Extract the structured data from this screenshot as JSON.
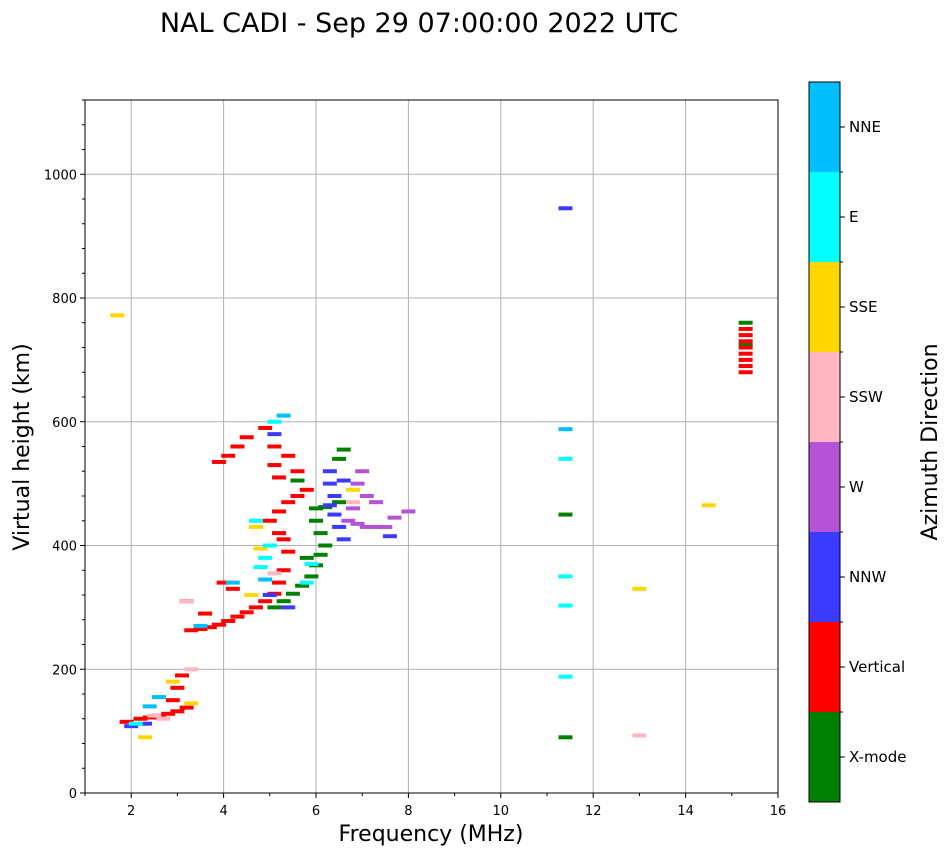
{
  "chart_data": {
    "type": "scatter",
    "title": "NAL CADI - Sep 29 07:00:00 2022 UTC",
    "xlabel": "Frequency (MHz)",
    "ylabel": "Virtual height (km)",
    "xlim": [
      1,
      16
    ],
    "ylim": [
      0,
      1120
    ],
    "xticks": [
      2,
      4,
      6,
      8,
      10,
      12,
      14,
      16
    ],
    "yticks": [
      0,
      200,
      400,
      600,
      800,
      1000
    ],
    "grid": true,
    "colorbar": {
      "title": "Azimuth Direction",
      "categories": [
        {
          "name": "X-mode",
          "color": "#008000"
        },
        {
          "name": "Vertical",
          "color": "#ff0000"
        },
        {
          "name": "NNW",
          "color": "#3b3bff"
        },
        {
          "name": "W",
          "color": "#b553d6"
        },
        {
          "name": "SSW",
          "color": "#ffb6c1"
        },
        {
          "name": "SSE",
          "color": "#ffd700"
        },
        {
          "name": "E",
          "color": "#00ffff"
        },
        {
          "name": "NNE",
          "color": "#00bfff"
        }
      ]
    },
    "series": [
      {
        "name": "X-mode",
        "points": [
          [
            11.4,
            90
          ],
          [
            11.4,
            450
          ],
          [
            5.1,
            300
          ],
          [
            5.3,
            310
          ],
          [
            5.5,
            322
          ],
          [
            5.7,
            335
          ],
          [
            5.9,
            350
          ],
          [
            6.0,
            368
          ],
          [
            6.1,
            385
          ],
          [
            6.2,
            400
          ],
          [
            6.1,
            420
          ],
          [
            6.0,
            440
          ],
          [
            6.0,
            460
          ],
          [
            6.2,
            462
          ],
          [
            6.5,
            470
          ],
          [
            6.5,
            540
          ],
          [
            6.6,
            555
          ],
          [
            5.6,
            505
          ],
          [
            5.8,
            380
          ],
          [
            15.3,
            725
          ],
          [
            15.3,
            760
          ]
        ]
      },
      {
        "name": "Vertical",
        "points": [
          [
            1.9,
            115
          ],
          [
            2.2,
            120
          ],
          [
            2.4,
            122
          ],
          [
            2.6,
            125
          ],
          [
            2.8,
            128
          ],
          [
            3.0,
            132
          ],
          [
            3.2,
            138
          ],
          [
            2.9,
            150
          ],
          [
            3.0,
            170
          ],
          [
            3.1,
            190
          ],
          [
            3.3,
            263
          ],
          [
            3.5,
            265
          ],
          [
            3.7,
            268
          ],
          [
            3.9,
            272
          ],
          [
            4.1,
            278
          ],
          [
            4.3,
            285
          ],
          [
            4.5,
            292
          ],
          [
            4.7,
            300
          ],
          [
            4.9,
            310
          ],
          [
            5.1,
            322
          ],
          [
            5.2,
            340
          ],
          [
            5.3,
            360
          ],
          [
            5.4,
            390
          ],
          [
            5.3,
            410
          ],
          [
            5.2,
            420
          ],
          [
            5.0,
            440
          ],
          [
            5.2,
            455
          ],
          [
            5.4,
            470
          ],
          [
            5.6,
            480
          ],
          [
            5.8,
            490
          ],
          [
            5.6,
            520
          ],
          [
            5.2,
            510
          ],
          [
            5.1,
            530
          ],
          [
            5.4,
            545
          ],
          [
            5.1,
            560
          ],
          [
            4.9,
            590
          ],
          [
            4.5,
            575
          ],
          [
            4.3,
            560
          ],
          [
            4.1,
            545
          ],
          [
            3.9,
            535
          ],
          [
            4.0,
            340
          ],
          [
            4.2,
            330
          ],
          [
            3.6,
            290
          ],
          [
            3.2,
            310
          ],
          [
            15.3,
            680
          ],
          [
            15.3,
            690
          ],
          [
            15.3,
            700
          ],
          [
            15.3,
            710
          ],
          [
            15.3,
            720
          ],
          [
            15.3,
            730
          ],
          [
            15.3,
            740
          ],
          [
            15.3,
            750
          ]
        ]
      },
      {
        "name": "NNW",
        "points": [
          [
            11.4,
            945
          ],
          [
            7.6,
            415
          ],
          [
            6.6,
            410
          ],
          [
            6.5,
            430
          ],
          [
            6.4,
            450
          ],
          [
            6.3,
            465
          ],
          [
            6.4,
            480
          ],
          [
            6.3,
            500
          ],
          [
            6.3,
            520
          ],
          [
            6.6,
            505
          ],
          [
            5.1,
            580
          ],
          [
            5.4,
            300
          ],
          [
            5.0,
            320
          ],
          [
            2.0,
            108
          ],
          [
            2.3,
            112
          ]
        ]
      },
      {
        "name": "W",
        "points": [
          [
            6.7,
            440
          ],
          [
            6.9,
            435
          ],
          [
            7.1,
            430
          ],
          [
            7.3,
            430
          ],
          [
            7.5,
            430
          ],
          [
            7.7,
            445
          ],
          [
            8.0,
            455
          ],
          [
            7.1,
            480
          ],
          [
            7.3,
            470
          ],
          [
            7.0,
            520
          ],
          [
            6.9,
            500
          ],
          [
            6.8,
            460
          ]
        ]
      },
      {
        "name": "SSW",
        "points": [
          [
            13.0,
            93
          ],
          [
            3.3,
            200
          ],
          [
            3.2,
            310
          ],
          [
            2.5,
            125
          ],
          [
            2.7,
            120
          ],
          [
            5.1,
            355
          ],
          [
            6.8,
            470
          ]
        ]
      },
      {
        "name": "SSE",
        "points": [
          [
            14.5,
            465
          ],
          [
            13.0,
            330
          ],
          [
            1.7,
            772
          ],
          [
            2.3,
            90
          ],
          [
            2.9,
            180
          ],
          [
            3.3,
            145
          ],
          [
            4.6,
            320
          ],
          [
            4.8,
            395
          ],
          [
            6.8,
            490
          ],
          [
            4.7,
            430
          ]
        ]
      },
      {
        "name": "E",
        "points": [
          [
            11.4,
            540
          ],
          [
            11.4,
            350
          ],
          [
            11.4,
            303
          ],
          [
            11.4,
            188
          ],
          [
            4.8,
            365
          ],
          [
            4.9,
            380
          ],
          [
            5.0,
            400
          ],
          [
            4.7,
            440
          ],
          [
            5.1,
            600
          ],
          [
            5.9,
            370
          ],
          [
            5.8,
            340
          ],
          [
            2.1,
            112
          ]
        ]
      },
      {
        "name": "NNE",
        "points": [
          [
            11.4,
            588
          ],
          [
            2.6,
            155
          ],
          [
            2.4,
            140
          ],
          [
            4.2,
            340
          ],
          [
            5.3,
            610
          ],
          [
            4.9,
            345
          ],
          [
            3.5,
            270
          ]
        ]
      }
    ]
  }
}
